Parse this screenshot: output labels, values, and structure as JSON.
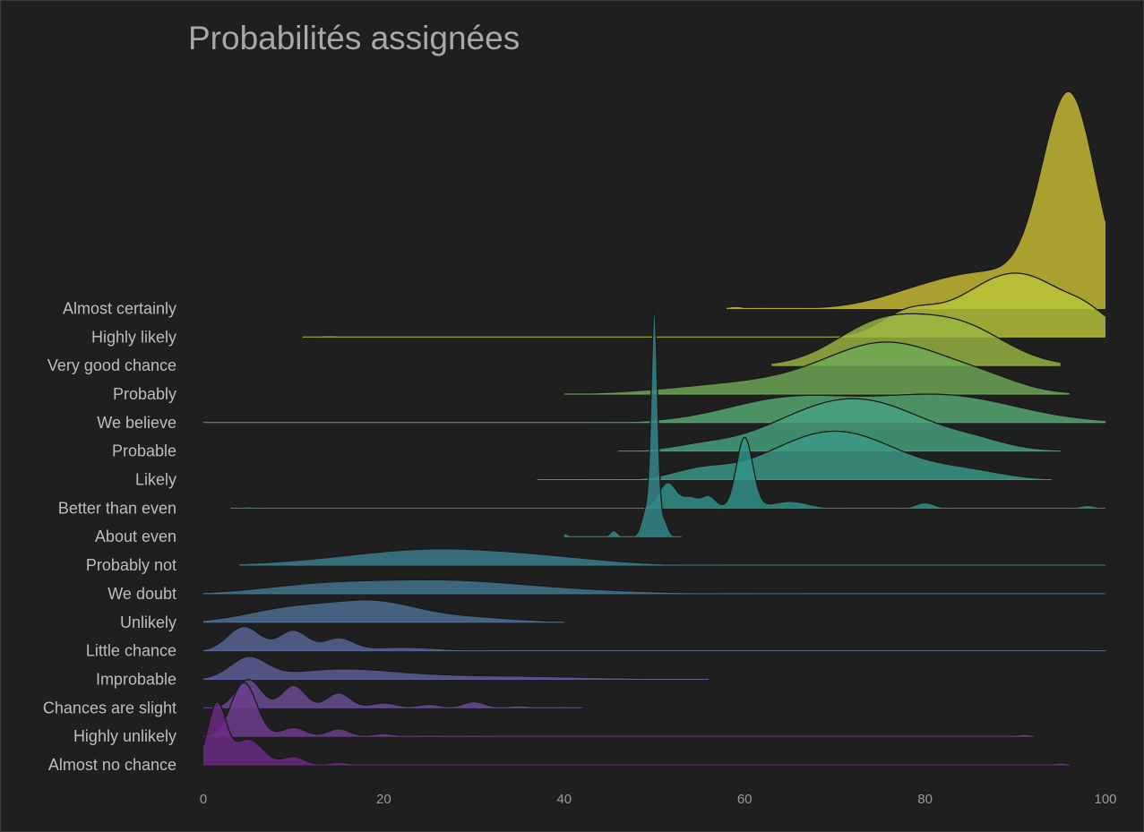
{
  "chart_data": {
    "type": "ridgeline",
    "title": "Probabilités assignées",
    "xlabel": "",
    "ylabel": "",
    "xlim": [
      0,
      100
    ],
    "x_ticks": [
      "0",
      "20",
      "40",
      "60",
      "80",
      "100"
    ],
    "grid": false,
    "legend": "none",
    "series": [
      {
        "name": "Almost no chance",
        "color": "#6b2a85",
        "range": [
          0,
          96
        ],
        "peaks": [
          [
            1.5,
            1.0,
            0.9
          ],
          [
            5,
            1.6,
            0.38
          ],
          [
            10,
            1.2,
            0.12
          ],
          [
            15,
            1.2,
            0.035
          ],
          [
            95,
            0.8,
            0.03
          ]
        ]
      },
      {
        "name": "Highly unlikely",
        "color": "#6e3d8f",
        "range": [
          0,
          92
        ],
        "peaks": [
          [
            4.5,
            1.4,
            0.8
          ],
          [
            10,
            1.3,
            0.13
          ],
          [
            15,
            1.2,
            0.11
          ],
          [
            20,
            1.2,
            0.04
          ],
          [
            25,
            1.2,
            0.02
          ],
          [
            30,
            1.2,
            0.015
          ],
          [
            91,
            0.8,
            0.03
          ]
        ]
      },
      {
        "name": "Chances are slight",
        "color": "#6a4d96",
        "range": [
          0,
          42
        ],
        "peaks": [
          [
            5,
            1.4,
            0.42
          ],
          [
            10,
            1.3,
            0.33
          ],
          [
            15,
            1.3,
            0.22
          ],
          [
            20,
            1.4,
            0.07
          ],
          [
            25,
            1.2,
            0.05
          ],
          [
            30,
            1.2,
            0.09
          ],
          [
            35,
            1.3,
            0.03
          ],
          [
            40,
            1.0,
            0.02
          ]
        ]
      },
      {
        "name": "Improbable",
        "color": "#5f5f9a",
        "range": [
          0,
          56
        ],
        "peaks": [
          [
            5,
            2.0,
            0.3
          ],
          [
            15,
            6.0,
            0.13
          ],
          [
            30,
            12.0,
            0.05
          ]
        ]
      },
      {
        "name": "Little chance",
        "color": "#586797",
        "range": [
          0,
          100
        ],
        "peaks": [
          [
            4.5,
            1.8,
            0.36
          ],
          [
            10,
            1.6,
            0.3
          ],
          [
            15,
            1.6,
            0.18
          ],
          [
            22,
            4.0,
            0.05
          ],
          [
            99,
            0.6,
            0.015
          ]
        ]
      },
      {
        "name": "Unlikely",
        "color": "#4f6f95",
        "range": [
          0,
          40
        ],
        "peaks": [
          [
            10,
            5.0,
            0.21
          ],
          [
            19,
            4.5,
            0.26
          ],
          [
            28,
            6.0,
            0.08
          ]
        ]
      },
      {
        "name": "We doubt",
        "color": "#43778f",
        "range": [
          0,
          100
        ],
        "peaks": [
          [
            12,
            6.0,
            0.08
          ],
          [
            26,
            10.0,
            0.2
          ],
          [
            45,
            8.0,
            0.02
          ]
        ]
      },
      {
        "name": "Probably not",
        "color": "#3c7f8d",
        "range": [
          4,
          100
        ],
        "peaks": [
          [
            26,
            10.0,
            0.24
          ],
          [
            40,
            6.0,
            0.04
          ]
        ]
      },
      {
        "name": "About even",
        "color": "#35898c",
        "range": [
          40,
          53
        ],
        "peaks": [
          [
            40,
            0.4,
            0.05
          ],
          [
            45.5,
            0.4,
            0.09
          ],
          [
            49.1,
            0.5,
            0.4
          ],
          [
            50,
            0.35,
            3.3
          ],
          [
            51,
            0.45,
            0.25
          ]
        ]
      },
      {
        "name": "Better than even",
        "color": "#2f948a",
        "range": [
          3,
          100
        ],
        "peaks": [
          [
            5,
            0.6,
            0.02
          ],
          [
            51.5,
            1.0,
            0.38
          ],
          [
            54,
            0.8,
            0.15
          ],
          [
            56,
            0.8,
            0.18
          ],
          [
            60,
            0.9,
            1.05
          ],
          [
            65,
            2.0,
            0.1
          ],
          [
            80,
            1.0,
            0.08
          ],
          [
            98,
            0.8,
            0.04
          ]
        ]
      },
      {
        "name": "Likely",
        "color": "#3b9a85",
        "range": [
          37,
          94
        ],
        "peaks": [
          [
            40,
            1.5,
            0.01
          ],
          [
            55,
            3.0,
            0.12
          ],
          [
            70,
            7.0,
            0.72
          ],
          [
            85,
            4.0,
            0.1
          ]
        ]
      },
      {
        "name": "Probable",
        "color": "#45a27f",
        "range": [
          46,
          95
        ],
        "peaks": [
          [
            55,
            3.0,
            0.05
          ],
          [
            72,
            8.0,
            0.78
          ],
          [
            86,
            3.0,
            0.06
          ]
        ]
      },
      {
        "name": "We believe",
        "color": "#57ab73",
        "range": [
          0,
          100
        ],
        "peaks": [
          [
            65,
            7.0,
            0.35
          ],
          [
            82,
            8.0,
            0.4
          ]
        ]
      },
      {
        "name": "Probably",
        "color": "#6fa856",
        "range": [
          40,
          96
        ],
        "peaks": [
          [
            60,
            8.0,
            0.15
          ],
          [
            76,
            7.0,
            0.75
          ],
          [
            87,
            4.0,
            0.12
          ]
        ]
      },
      {
        "name": "Very good chance",
        "color": "#98b443",
        "range": [
          63,
          95
        ],
        "peaks": [
          [
            75,
            5.0,
            0.6
          ],
          [
            84,
            5.0,
            0.55
          ]
        ]
      },
      {
        "name": "Highly likely",
        "color": "#b8c43a",
        "range": [
          11,
          100
        ],
        "peaks": [
          [
            14,
            1.0,
            0.02
          ],
          [
            78,
            3.0,
            0.3
          ],
          [
            90,
            6.0,
            0.95
          ],
          [
            98,
            2.0,
            0.12
          ]
        ]
      },
      {
        "name": "Almost certainly",
        "color": "#c9bd35",
        "range": [
          58,
          100
        ],
        "peaks": [
          [
            59,
            0.8,
            0.03
          ],
          [
            80,
            5.0,
            0.25
          ],
          [
            88,
            5.0,
            0.45
          ],
          [
            96,
            3.0,
            3.1
          ]
        ]
      }
    ]
  }
}
